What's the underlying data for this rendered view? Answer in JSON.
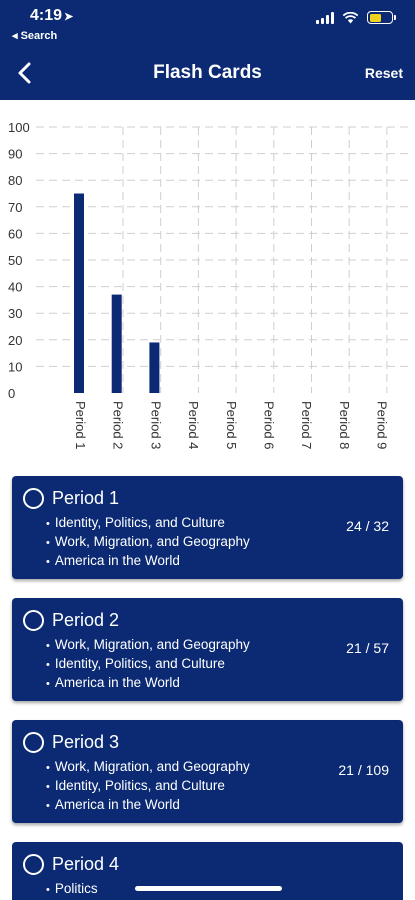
{
  "status_bar": {
    "time": "4:19",
    "back_app": "◂ Search"
  },
  "nav": {
    "title": "Flash Cards",
    "reset_label": "Reset"
  },
  "colors": {
    "primary": "#0b2a73",
    "battery": "#f2d31b",
    "grid": "#cfcfcf"
  },
  "chart_data": {
    "type": "bar",
    "categories": [
      "Period 1",
      "Period 2",
      "Period 3",
      "Period 4",
      "Period 5",
      "Period 6",
      "Period 7",
      "Period 8",
      "Period 9"
    ],
    "values": [
      75,
      37,
      19,
      0,
      0,
      0,
      0,
      0,
      0
    ],
    "ylim": [
      0,
      100
    ],
    "yticks": [
      0,
      10,
      20,
      30,
      40,
      50,
      60,
      70,
      80,
      90,
      100
    ],
    "grid": true,
    "color": "#0b2a73"
  },
  "cards": [
    {
      "title": "Period 1",
      "topics": [
        "Identity, Politics, and Culture",
        "Work, Migration, and Geography",
        "America in the World"
      ],
      "progress": "24 / 32"
    },
    {
      "title": "Period 2",
      "topics": [
        "Work, Migration, and Geography",
        "Identity, Politics, and Culture",
        "America in the World"
      ],
      "progress": "21 / 57"
    },
    {
      "title": "Period 3",
      "topics": [
        "Work, Migration, and Geography",
        "Identity, Politics, and Culture",
        "America in the World"
      ],
      "progress": "21 / 109"
    },
    {
      "title": "Period 4",
      "topics": [
        "Politics"
      ],
      "progress": ""
    }
  ]
}
